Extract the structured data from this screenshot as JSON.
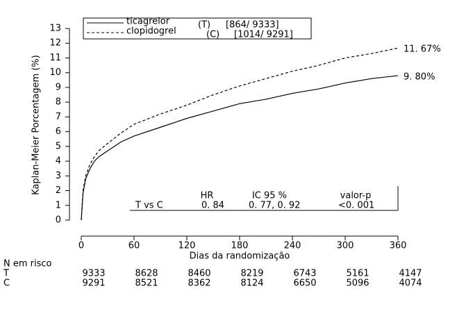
{
  "chart_data": {
    "type": "line",
    "ylabel": "Kaplan-Meier Porcentagem (%)",
    "xlabel": "Dias da randomização",
    "x": [
      0,
      2,
      5,
      10,
      15,
      20,
      30,
      45,
      60,
      90,
      120,
      150,
      180,
      210,
      240,
      270,
      300,
      330,
      360
    ],
    "series": [
      {
        "name": "ticagrelor",
        "abbrev": "(T)",
        "events": "[864/ 9333]",
        "color": "#000000",
        "dashed": false,
        "end_label": "9. 80%",
        "values": [
          0,
          1.8,
          2.8,
          3.5,
          4.0,
          4.3,
          4.7,
          5.3,
          5.7,
          6.3,
          6.9,
          7.4,
          7.9,
          8.2,
          8.6,
          8.9,
          9.3,
          9.6,
          9.8
        ]
      },
      {
        "name": "clopidogrel",
        "abbrev": "(C)",
        "events": "[1014/ 9291]",
        "color": "#000000",
        "dashed": true,
        "end_label": "11. 67%",
        "values": [
          0,
          2.0,
          3.0,
          3.8,
          4.3,
          4.7,
          5.2,
          5.9,
          6.5,
          7.2,
          7.8,
          8.5,
          9.1,
          9.6,
          10.1,
          10.5,
          11.0,
          11.3,
          11.67
        ]
      }
    ],
    "xlim": [
      0,
      360
    ],
    "xticks": [
      0,
      60,
      120,
      180,
      240,
      300,
      360
    ],
    "ylim": [
      0,
      13
    ],
    "yticks": [
      0,
      1,
      2,
      3,
      4,
      5,
      6,
      7,
      8,
      9,
      10,
      11,
      12,
      13
    ],
    "stats_table": {
      "header": [
        "HR",
        "IC 95 %",
        "valor-p"
      ],
      "row": [
        "T vs C",
        "0. 84",
        "0. 77, 0. 92",
        "<0. 001"
      ]
    },
    "risk_table": {
      "title": "N em risco",
      "rows": [
        {
          "label": "T",
          "values": [
            9333,
            8628,
            8460,
            8219,
            6743,
            5161,
            4147
          ]
        },
        {
          "label": "C",
          "values": [
            9291,
            8521,
            8362,
            8124,
            6650,
            5096,
            4074
          ]
        }
      ]
    }
  }
}
